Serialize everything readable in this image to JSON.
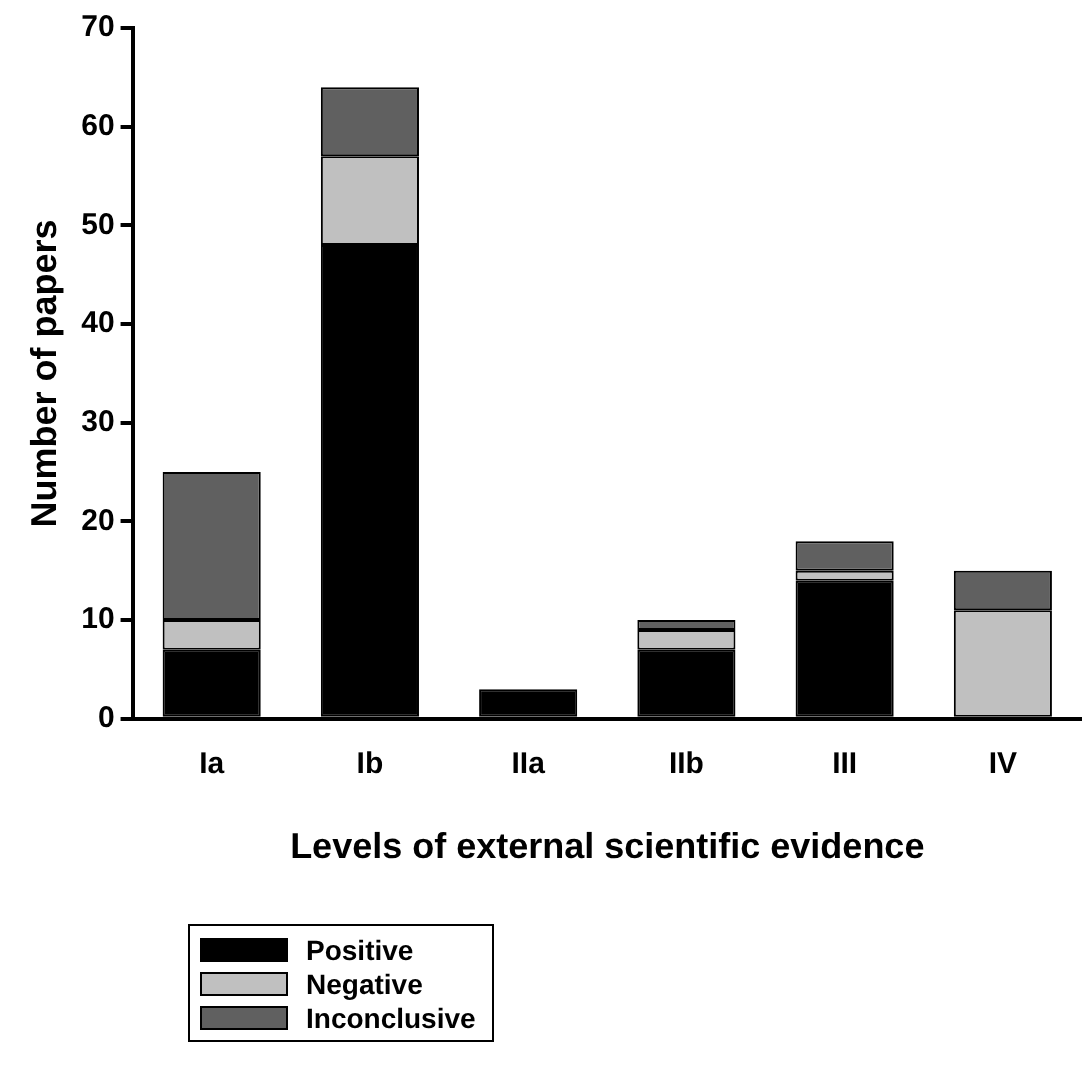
{
  "chart_data": {
    "type": "bar",
    "stacked": true,
    "xlabel": "Levels of external scientific evidence",
    "ylabel": "Number of papers",
    "categories": [
      "Ia",
      "Ib",
      "IIa",
      "IIb",
      "III",
      "IV"
    ],
    "series": [
      {
        "name": "Positive",
        "color": "#000000",
        "values": [
          7,
          48,
          3,
          7,
          14,
          0
        ]
      },
      {
        "name": "Negative",
        "color": "#c0c0c0",
        "values": [
          3,
          9,
          0,
          2,
          1,
          11
        ]
      },
      {
        "name": "Inconclusive",
        "color": "#606060",
        "values": [
          15,
          7,
          0,
          1,
          3,
          4
        ]
      }
    ],
    "ylim": [
      0,
      70
    ],
    "yticks": [
      0,
      10,
      20,
      30,
      40,
      50,
      60,
      70
    ],
    "grid": false,
    "legend": "bottom left"
  }
}
